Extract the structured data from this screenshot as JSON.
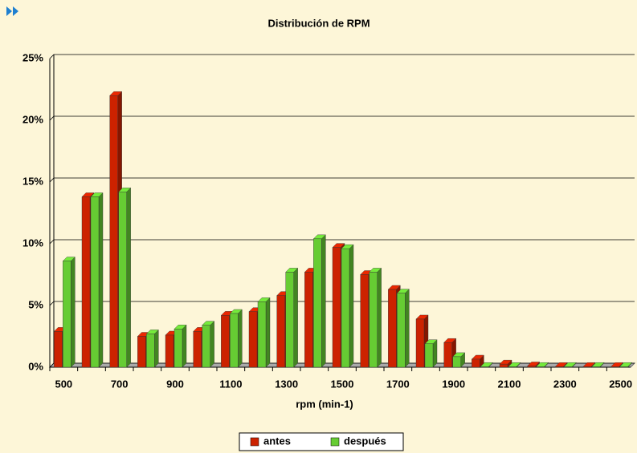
{
  "chart_data": {
    "type": "bar",
    "title": "Distribución de RPM",
    "x_label": "rpm (min-1)",
    "categories": [
      "500",
      null,
      "700",
      null,
      "900",
      null,
      "1100",
      null,
      "1300",
      null,
      "1500",
      null,
      "1700",
      null,
      "1900",
      null,
      "2100",
      null,
      "2300",
      null,
      "2500"
    ],
    "series": [
      {
        "name": "antes",
        "color": "#cc2200",
        "values": [
          2.9,
          13.8,
          22.0,
          2.5,
          2.6,
          2.9,
          4.2,
          4.5,
          5.8,
          7.7,
          9.7,
          7.5,
          6.3,
          3.9,
          2.0,
          0.65,
          0.25,
          0.1,
          0.05,
          0.05,
          0.05
        ]
      },
      {
        "name": "después",
        "color": "#66cc33",
        "values": [
          8.6,
          13.8,
          14.2,
          2.7,
          3.1,
          3.4,
          4.35,
          5.3,
          7.7,
          10.4,
          9.6,
          7.7,
          6.0,
          1.9,
          0.85,
          0.05,
          0.05,
          0.05,
          0.05,
          0.05,
          0.05
        ]
      }
    ],
    "ylim": [
      0,
      25
    ],
    "yticks": [
      {
        "value": 0,
        "label": "0%"
      },
      {
        "value": 5,
        "label": "5%"
      },
      {
        "value": 10,
        "label": "10%"
      },
      {
        "value": 15,
        "label": "15%"
      },
      {
        "value": 20,
        "label": "20%"
      },
      {
        "value": 25,
        "label": "25%"
      }
    ],
    "grid": true,
    "legend": "bottom"
  }
}
